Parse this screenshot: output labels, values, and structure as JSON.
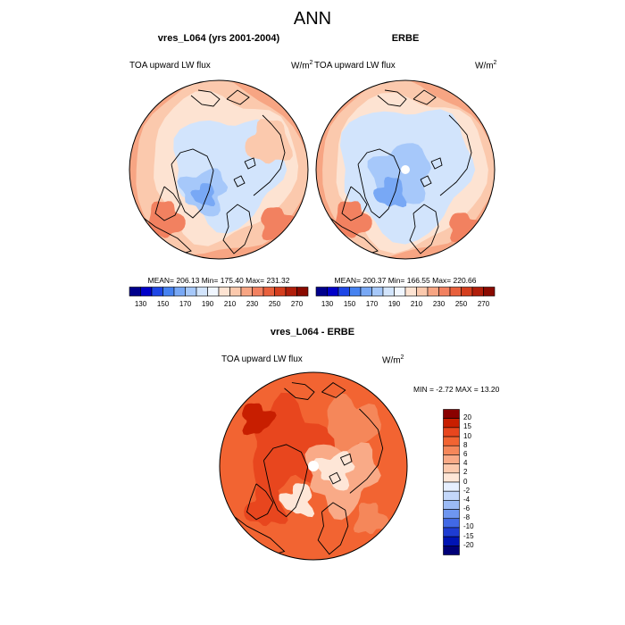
{
  "chart_data": {
    "type": "heatmap",
    "title": "ANN",
    "panels": [
      {
        "title": "vres_L064 (yrs 2001-2004)",
        "variable": "TOA upward LW flux",
        "units": "W/m",
        "units_sup": "2",
        "projection": "north polar stereographic",
        "stats": "MEAN= 206.13  Min= 175.40  Max= 231.32",
        "mean": 206.13,
        "min": 175.4,
        "max": 231.32,
        "colorbar_levels": [
          "130",
          "150",
          "170",
          "190",
          "210",
          "230",
          "250",
          "270"
        ],
        "colorbar_colors": [
          "#00008c",
          "#0000c8",
          "#1e46e6",
          "#4682f0",
          "#78a8f5",
          "#a6c8fa",
          "#d2e4fc",
          "#f0f6ff",
          "#fde3d2",
          "#fbc9ad",
          "#f7a583",
          "#f28160",
          "#e8603c",
          "#d43e1e",
          "#b01e0a",
          "#8a0a00"
        ]
      },
      {
        "title": "ERBE",
        "variable": "TOA upward LW flux",
        "units": "W/m",
        "units_sup": "2",
        "projection": "north polar stereographic",
        "stats": "MEAN= 200.37  Min= 166.55  Max= 220.66",
        "mean": 200.37,
        "min": 166.55,
        "max": 220.66,
        "colorbar_levels": [
          "130",
          "150",
          "170",
          "190",
          "210",
          "230",
          "250",
          "270"
        ],
        "colorbar_colors": [
          "#00008c",
          "#0000c8",
          "#1e46e6",
          "#4682f0",
          "#78a8f5",
          "#a6c8fa",
          "#d2e4fc",
          "#f0f6ff",
          "#fde3d2",
          "#fbc9ad",
          "#f7a583",
          "#f28160",
          "#e8603c",
          "#d43e1e",
          "#b01e0a",
          "#8a0a00"
        ]
      },
      {
        "title": "vres_L064 - ERBE",
        "variable": "TOA upward LW flux",
        "units": "W/m",
        "units_sup": "2",
        "projection": "north polar stereographic",
        "stats": "MIN =  -2.72 MAX =  13.20",
        "min": -2.72,
        "max": 13.2,
        "colorbar_levels": [
          "20",
          "15",
          "10",
          "8",
          "6",
          "4",
          "2",
          "0",
          "-2",
          "-4",
          "-6",
          "-8",
          "-10",
          "-15",
          "-20"
        ],
        "colorbar_colors": [
          "#8a0000",
          "#c81e00",
          "#e8461e",
          "#f26432",
          "#f5875a",
          "#f9aa87",
          "#fcc9ad",
          "#fee6d7",
          "#e6efff",
          "#c3d7fa",
          "#9bbaf5",
          "#6e96f0",
          "#4169e6",
          "#1e3cd2",
          "#0014b4",
          "#000078"
        ]
      }
    ]
  }
}
